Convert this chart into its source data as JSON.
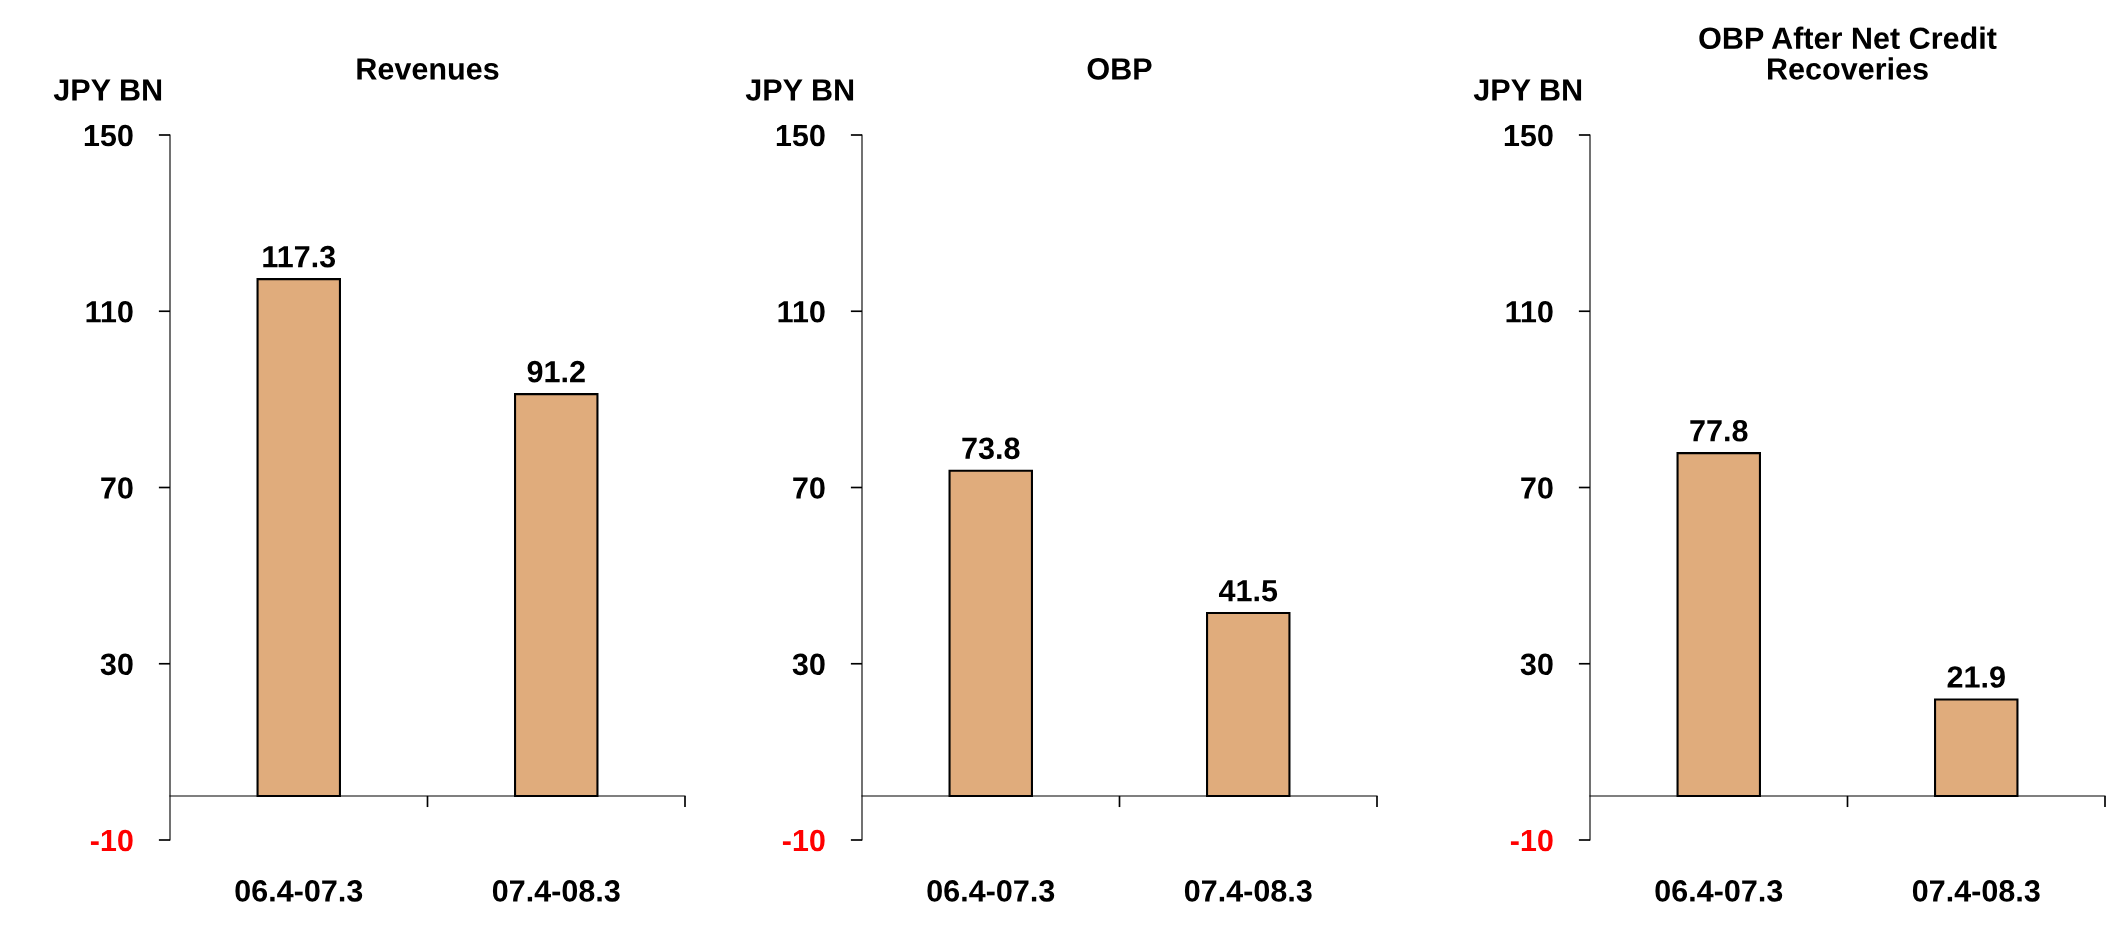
{
  "chart_data": [
    {
      "type": "bar",
      "title": "Revenues",
      "ylabel": "JPY BN",
      "categories": [
        "06.4-07.3",
        "07.4-08.3"
      ],
      "values": [
        117.3,
        91.2
      ],
      "color": "#e0ac7c",
      "ylim": [
        -10,
        150
      ],
      "yticks": [
        -10,
        30,
        70,
        110,
        150
      ],
      "data_labels": true,
      "grid": false,
      "legend": false
    },
    {
      "type": "bar",
      "title": "OBP",
      "ylabel": "JPY BN",
      "categories": [
        "06.4-07.3",
        "07.4-08.3"
      ],
      "values": [
        73.8,
        41.5
      ],
      "color": "#e0ac7c",
      "ylim": [
        -10,
        150
      ],
      "yticks": [
        -10,
        30,
        70,
        110,
        150
      ],
      "data_labels": true,
      "grid": false,
      "legend": false
    },
    {
      "type": "bar",
      "title": "OBP After Net Credit\nRecoveries",
      "ylabel": "JPY BN",
      "categories": [
        "06.4-07.3",
        "07.4-08.3"
      ],
      "values": [
        77.8,
        21.9
      ],
      "color": "#e0ac7c",
      "ylim": [
        -10,
        150
      ],
      "yticks": [
        -10,
        30,
        70,
        110,
        150
      ],
      "data_labels": true,
      "grid": false,
      "legend": false
    }
  ]
}
